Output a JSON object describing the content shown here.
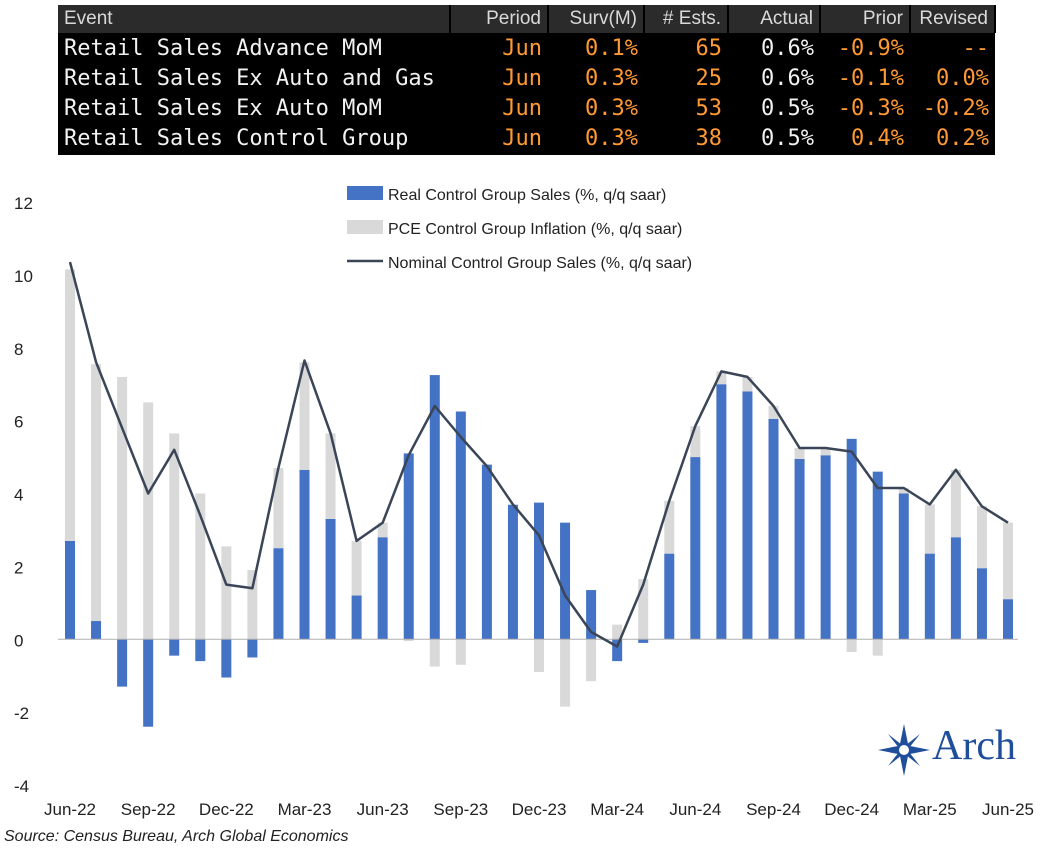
{
  "table": {
    "headers": {
      "event": "Event",
      "period": "Period",
      "surv": "Surv(M)",
      "ests": "# Ests.",
      "actual": "Actual",
      "prior": "Prior",
      "revised": "Revised"
    },
    "rows": [
      {
        "event": "Retail Sales Advance MoM",
        "period": "Jun",
        "surv": "0.1%",
        "ests": "65",
        "actual": "0.6%",
        "prior": "-0.9%",
        "revised": "--"
      },
      {
        "event": "Retail Sales Ex Auto and Gas",
        "period": "Jun",
        "surv": "0.3%",
        "ests": "25",
        "actual": "0.6%",
        "prior": "-0.1%",
        "revised": "0.0%"
      },
      {
        "event": "Retail Sales Ex Auto MoM",
        "period": "Jun",
        "surv": "0.3%",
        "ests": "53",
        "actual": "0.5%",
        "prior": "-0.3%",
        "revised": "-0.2%"
      },
      {
        "event": "Retail Sales Control Group",
        "period": "Jun",
        "surv": "0.3%",
        "ests": "38",
        "actual": "0.5%",
        "prior": "0.4%",
        "revised": "0.2%"
      }
    ]
  },
  "chart_data": {
    "type": "bar",
    "stacked": true,
    "title": "",
    "ylim": [
      -4,
      12
    ],
    "yticks": [
      12,
      10,
      8,
      6,
      4,
      2,
      0,
      -2,
      -4
    ],
    "xtick_labels": [
      "Jun-22",
      "Sep-22",
      "Dec-22",
      "Mar-23",
      "Jun-23",
      "Sep-23",
      "Dec-23",
      "Mar-24",
      "Jun-24",
      "Sep-24",
      "Dec-24",
      "Mar-25",
      "Jun-25"
    ],
    "categories": [
      "Jun-22",
      "Jul-22",
      "Aug-22",
      "Sep-22",
      "Oct-22",
      "Nov-22",
      "Dec-22",
      "Jan-23",
      "Feb-23",
      "Mar-23",
      "Apr-23",
      "May-23",
      "Jun-23",
      "Jul-23",
      "Aug-23",
      "Sep-23",
      "Oct-23",
      "Nov-23",
      "Dec-23",
      "Jan-24",
      "Feb-24",
      "Mar-24",
      "Apr-24",
      "May-24",
      "Jun-24",
      "Jul-24",
      "Aug-24",
      "Sep-24",
      "Oct-24",
      "Nov-24",
      "Dec-24",
      "Jan-25",
      "Feb-25",
      "Mar-25",
      "Apr-25",
      "May-25",
      "Jun-25"
    ],
    "series": [
      {
        "name": "Real Control Group Sales (%, q/q saar)",
        "kind": "bar",
        "color": "#4472c4",
        "values": [
          2.7,
          0.5,
          -1.3,
          -2.4,
          -0.45,
          -0.6,
          -1.05,
          -0.5,
          2.5,
          4.65,
          3.3,
          1.2,
          2.8,
          5.1,
          7.25,
          6.25,
          4.8,
          3.7,
          3.75,
          3.2,
          1.35,
          -0.6,
          -0.1,
          2.35,
          5.0,
          7.0,
          6.8,
          6.05,
          4.95,
          5.05,
          5.5,
          4.6,
          4.0,
          2.35,
          2.8,
          1.95,
          1.1
        ]
      },
      {
        "name": "PCE Control Group Inflation (%, q/q saar)",
        "kind": "bar",
        "color": "#d9d9d9",
        "values": [
          7.45,
          7.05,
          7.2,
          6.5,
          5.65,
          4.0,
          2.55,
          1.9,
          2.2,
          2.95,
          2.35,
          1.5,
          0.4,
          -0.05,
          -0.75,
          -0.7,
          0.0,
          0.0,
          -0.9,
          -1.85,
          -1.15,
          0.4,
          1.65,
          1.45,
          0.85,
          0.35,
          0.4,
          0.35,
          0.3,
          0.2,
          -0.35,
          -0.45,
          0.15,
          1.35,
          1.85,
          1.7,
          2.1
        ]
      },
      {
        "name": "Nominal Control Group Sales (%, q/q saar)",
        "kind": "line",
        "color": "#3a4657",
        "values": [
          10.35,
          7.6,
          5.8,
          4.0,
          5.2,
          3.4,
          1.5,
          1.4,
          4.7,
          7.65,
          5.65,
          2.7,
          3.2,
          5.05,
          6.4,
          5.55,
          4.75,
          3.7,
          2.85,
          1.2,
          0.2,
          -0.2,
          1.5,
          3.8,
          5.85,
          7.35,
          7.2,
          6.4,
          5.25,
          5.25,
          5.15,
          4.15,
          4.15,
          3.7,
          4.65,
          3.65,
          3.2
        ]
      }
    ]
  },
  "source": "Source: Census Bureau, Arch Global Economics",
  "logo": {
    "text": "Arch",
    "color": "#1f4e9a"
  }
}
